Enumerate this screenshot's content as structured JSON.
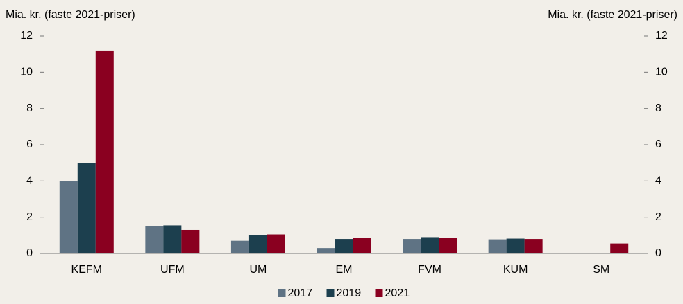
{
  "chart_data": {
    "type": "bar",
    "y_label": "Mia. kr. (faste 2021-priser)",
    "y2_label": "Mia. kr. (faste 2021-priser)",
    "categories": [
      "KEFM",
      "UFM",
      "UM",
      "EM",
      "FVM",
      "KUM",
      "SM"
    ],
    "series": [
      {
        "name": "2017",
        "color": "#5f7384",
        "values": [
          4.0,
          1.5,
          0.7,
          0.3,
          0.8,
          0.78,
          null
        ]
      },
      {
        "name": "2019",
        "color": "#1c3f4e",
        "values": [
          5.0,
          1.55,
          1.0,
          0.8,
          0.9,
          0.82,
          null
        ]
      },
      {
        "name": "2021",
        "color": "#8a0020",
        "values": [
          11.2,
          1.3,
          1.05,
          0.85,
          0.85,
          0.8,
          0.55
        ]
      }
    ],
    "ylim": [
      0,
      12
    ],
    "yticks": [
      0,
      2,
      4,
      6,
      8,
      10,
      12
    ],
    "y2lim": [
      0,
      12
    ],
    "y2ticks": [
      0,
      2,
      4,
      6,
      8,
      10,
      12
    ],
    "grid": false,
    "legend": "bottom"
  }
}
